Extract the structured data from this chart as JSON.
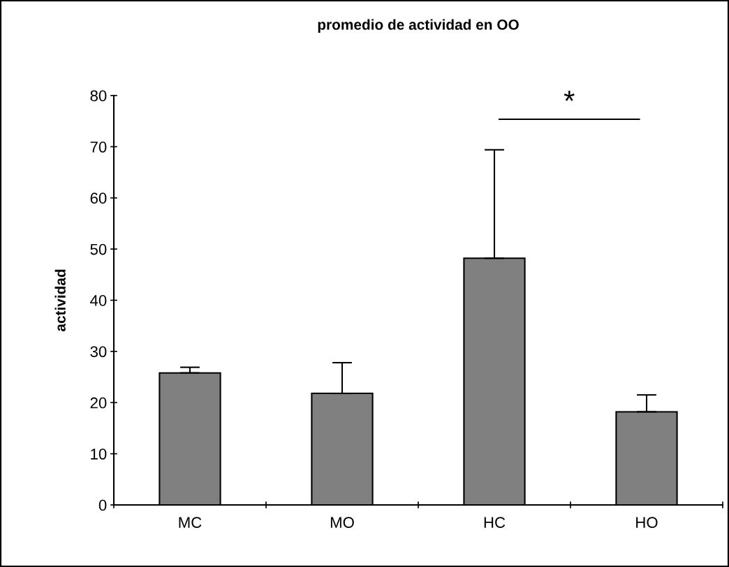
{
  "chart_data": {
    "type": "bar",
    "title": "promedio de actividad en OO",
    "ylabel": "actividad",
    "categories": [
      "MC",
      "MO",
      "HC",
      "HO"
    ],
    "values": [
      25.8,
      21.8,
      48.2,
      18.2
    ],
    "errors": [
      [
        25.8,
        26.9
      ],
      [
        21.8,
        27.8
      ],
      [
        48.2,
        69.4
      ],
      [
        18.2,
        21.5
      ]
    ],
    "color": "#808080",
    "ylim": [
      0,
      80
    ],
    "yticks": [
      0,
      10,
      20,
      30,
      40,
      50,
      60,
      70,
      80
    ],
    "grid": false,
    "annotations": [
      "*"
    ]
  }
}
